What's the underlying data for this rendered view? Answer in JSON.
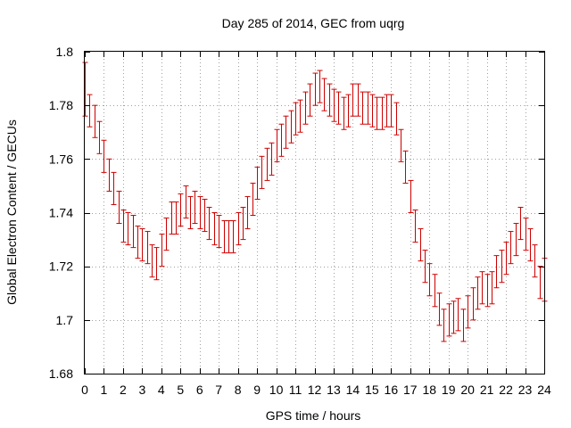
{
  "chart_data": {
    "type": "line",
    "title": "Day 285 of 2014, GEC from uqrg",
    "xlabel": "GPS time / hours",
    "ylabel": "Global Electron Content / GECUs",
    "xlim": [
      0,
      24
    ],
    "ylim": [
      1.68,
      1.8
    ],
    "xticks": [
      0,
      1,
      2,
      3,
      4,
      5,
      6,
      7,
      8,
      9,
      10,
      11,
      12,
      13,
      14,
      15,
      16,
      17,
      18,
      19,
      20,
      21,
      22,
      23,
      24
    ],
    "yticks": [
      1.68,
      1.7,
      1.72,
      1.74,
      1.76,
      1.78,
      1.8
    ],
    "xtick_labels": [
      "0",
      "1",
      "2",
      "3",
      "4",
      "5",
      "6",
      "7",
      "8",
      "9",
      "10",
      "11",
      "12",
      "13",
      "14",
      "15",
      "16",
      "17",
      "18",
      "19",
      "20",
      "21",
      "22",
      "23",
      "24"
    ],
    "ytick_labels": [
      "1.68",
      "1.7",
      "1.72",
      "1.74",
      "1.76",
      "1.78",
      "1.8"
    ],
    "grid": true,
    "series_color": "#cc0000",
    "series": [
      {
        "style": "errorbars",
        "x": [
          0,
          0.25,
          0.5,
          0.75,
          1,
          1.25,
          1.5,
          1.75,
          2,
          2.25,
          2.5,
          2.75,
          3,
          3.25,
          3.5,
          3.75,
          4,
          4.25,
          4.5,
          4.75,
          5,
          5.25,
          5.5,
          5.75,
          6,
          6.25,
          6.5,
          6.75,
          7,
          7.25,
          7.5,
          7.75,
          8,
          8.25,
          8.5,
          8.75,
          9,
          9.25,
          9.5,
          9.75,
          10,
          10.25,
          10.5,
          10.75,
          11,
          11.25,
          11.5,
          11.75,
          12,
          12.25,
          12.5,
          12.75,
          13,
          13.25,
          13.5,
          13.75,
          14,
          14.25,
          14.5,
          14.75,
          15,
          15.25,
          15.5,
          15.75,
          16,
          16.25,
          16.5,
          16.75,
          17,
          17.25,
          17.5,
          17.75,
          18,
          18.25,
          18.5,
          18.75,
          19,
          19.25,
          19.5,
          19.75,
          20,
          20.25,
          20.5,
          20.75,
          21,
          21.25,
          21.5,
          21.75,
          22,
          22.25,
          22.5,
          22.75,
          23,
          23.25,
          23.5,
          23.75,
          24
        ],
        "y": [
          1.786,
          1.778,
          1.774,
          1.768,
          1.761,
          1.754,
          1.749,
          1.742,
          1.735,
          1.734,
          1.733,
          1.729,
          1.728,
          1.727,
          1.722,
          1.721,
          1.726,
          1.732,
          1.738,
          1.738,
          1.741,
          1.744,
          1.74,
          1.742,
          1.74,
          1.739,
          1.736,
          1.734,
          1.733,
          1.731,
          1.731,
          1.731,
          1.734,
          1.736,
          1.74,
          1.745,
          1.751,
          1.755,
          1.758,
          1.76,
          1.765,
          1.767,
          1.77,
          1.772,
          1.775,
          1.776,
          1.779,
          1.782,
          1.786,
          1.787,
          1.784,
          1.782,
          1.78,
          1.779,
          1.777,
          1.778,
          1.782,
          1.782,
          1.779,
          1.779,
          1.778,
          1.777,
          1.777,
          1.778,
          1.778,
          1.775,
          1.765,
          1.757,
          1.746,
          1.735,
          1.728,
          1.72,
          1.715,
          1.711,
          1.704,
          1.698,
          1.7,
          1.701,
          1.702,
          1.698,
          1.703,
          1.706,
          1.71,
          1.712,
          1.711,
          1.712,
          1.718,
          1.72,
          1.723,
          1.727,
          1.73,
          1.736,
          1.732,
          1.728,
          1.722,
          1.714,
          1.715
        ],
        "err": [
          0.01,
          0.006,
          0.006,
          0.006,
          0.006,
          0.006,
          0.006,
          0.006,
          0.006,
          0.006,
          0.006,
          0.006,
          0.006,
          0.006,
          0.006,
          0.006,
          0.006,
          0.006,
          0.006,
          0.006,
          0.006,
          0.006,
          0.006,
          0.006,
          0.006,
          0.006,
          0.006,
          0.006,
          0.006,
          0.006,
          0.006,
          0.006,
          0.006,
          0.006,
          0.006,
          0.006,
          0.006,
          0.006,
          0.006,
          0.006,
          0.006,
          0.006,
          0.006,
          0.006,
          0.006,
          0.006,
          0.006,
          0.006,
          0.006,
          0.006,
          0.006,
          0.006,
          0.006,
          0.006,
          0.006,
          0.006,
          0.006,
          0.006,
          0.006,
          0.006,
          0.006,
          0.006,
          0.006,
          0.006,
          0.006,
          0.006,
          0.006,
          0.006,
          0.006,
          0.006,
          0.006,
          0.006,
          0.006,
          0.006,
          0.006,
          0.006,
          0.006,
          0.006,
          0.006,
          0.006,
          0.006,
          0.006,
          0.006,
          0.006,
          0.006,
          0.006,
          0.006,
          0.006,
          0.006,
          0.006,
          0.006,
          0.006,
          0.006,
          0.006,
          0.006,
          0.006,
          0.008
        ]
      }
    ]
  }
}
